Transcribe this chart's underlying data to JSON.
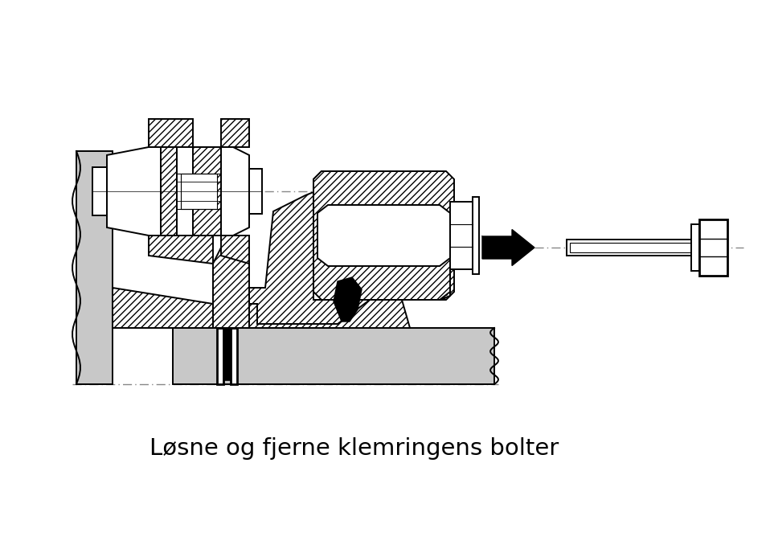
{
  "title": "Løsne og fjerne klemringens bolter",
  "title_fontsize": 21,
  "bg_color": "#ffffff",
  "line_color": "#000000",
  "gray_fill": "#c8c8c8",
  "centerline_color": "#777777",
  "fig_width": 9.58,
  "fig_height": 6.88
}
